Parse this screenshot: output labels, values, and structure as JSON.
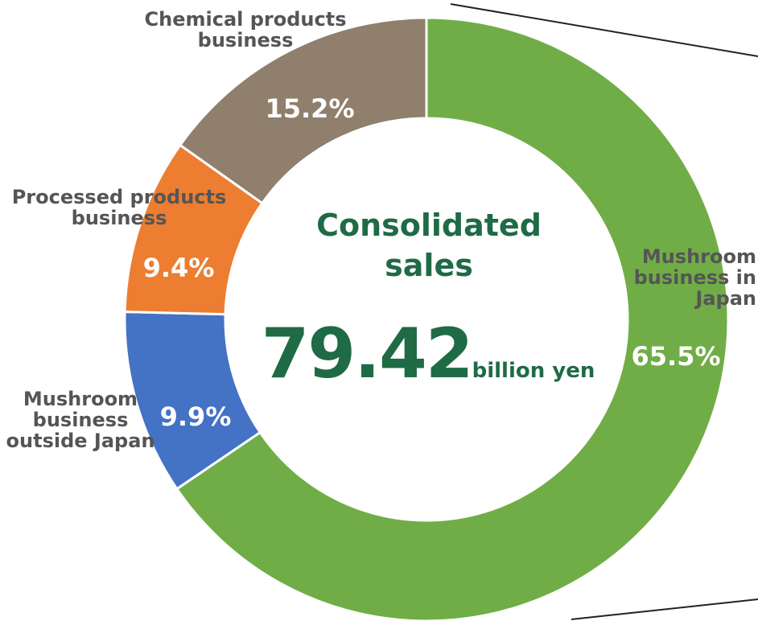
{
  "chart_data": {
    "type": "donut",
    "categories": [
      "Mushroom business in Japan",
      "Mushroom business outside Japan",
      "Processed products business",
      "Chemical products business"
    ],
    "values": [
      65.5,
      9.9,
      9.4,
      15.2
    ],
    "value_labels": [
      "65.5%",
      "9.9%",
      "9.4%",
      "15.2%"
    ],
    "colors": [
      "#70ad47",
      "#4472c4",
      "#ed7d31",
      "#8f7f6c"
    ],
    "center_title": "Consolidated sales",
    "total": 79.42,
    "total_unit": "billion yen"
  }
}
